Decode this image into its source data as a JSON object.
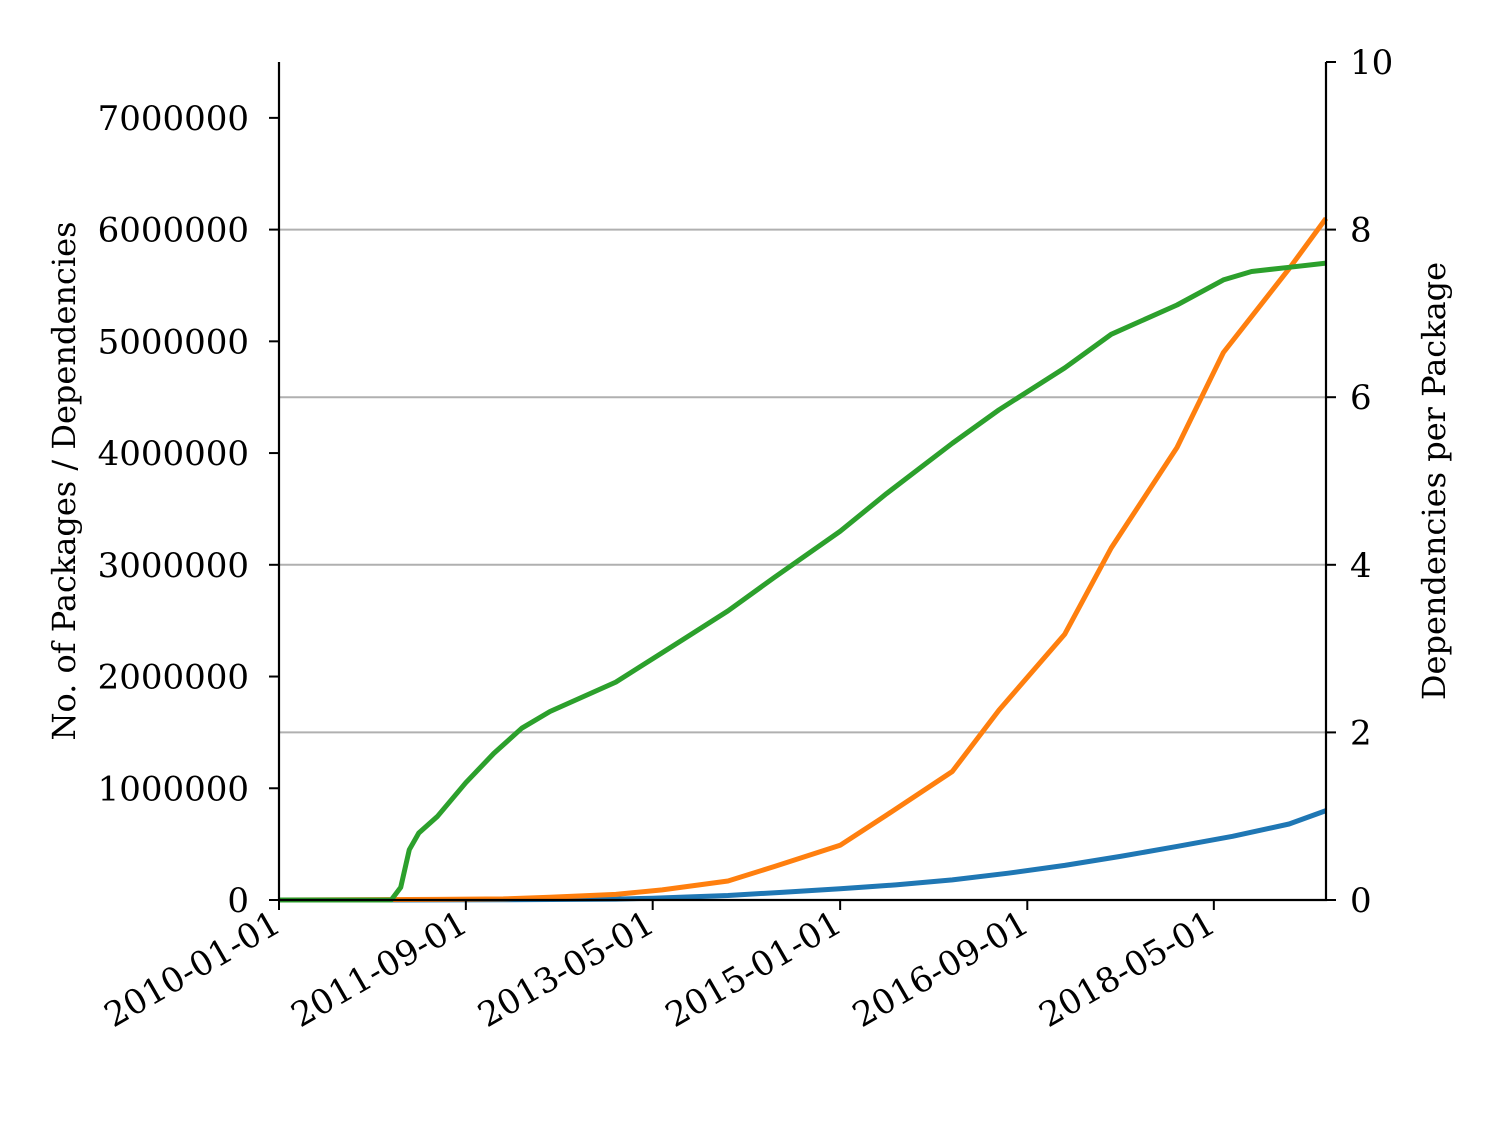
{
  "chart_data": {
    "type": "line",
    "xlabel": "",
    "ylabel": "No. of Packages / Dependencies",
    "y2label": "Dependencies per Package",
    "xlim": [
      "2010-01-01",
      "2019-05-01"
    ],
    "ylim": [
      0,
      7500000
    ],
    "y2lim": [
      0,
      10
    ],
    "grid": "horizontal, right axis",
    "x_ticks": [
      "2010-01-01",
      "2011-09-01",
      "2013-05-01",
      "2015-01-01",
      "2016-09-01",
      "2018-05-01"
    ],
    "y_ticks": [
      "0",
      "1000000",
      "2000000",
      "3000000",
      "4000000",
      "5000000",
      "6000000",
      "7000000"
    ],
    "y2_ticks": [
      "0",
      "2",
      "4",
      "6",
      "8",
      "10"
    ],
    "colors": {
      "blue": "#1f77b4",
      "orange": "#ff7f0e",
      "green": "#2ca02c"
    },
    "series": [
      {
        "color": "#1f77b4",
        "axis": "left",
        "x": [
          "2010-01-01",
          "2011-01-01",
          "2012-01-01",
          "2013-01-01",
          "2013-05-01",
          "2014-01-01",
          "2014-07-01",
          "2015-01-01",
          "2015-07-01",
          "2016-01-01",
          "2016-07-01",
          "2017-01-01",
          "2017-07-01",
          "2018-01-01",
          "2018-07-01",
          "2019-01-01",
          "2019-05-01"
        ],
        "values": [
          0,
          0,
          2000,
          8000,
          15000,
          40000,
          70000,
          100000,
          135000,
          180000,
          240000,
          310000,
          390000,
          480000,
          570000,
          680000,
          800000
        ]
      },
      {
        "color": "#ff7f0e",
        "axis": "left",
        "x": [
          "2010-01-01",
          "2011-06-01",
          "2012-01-01",
          "2012-06-01",
          "2013-01-01",
          "2013-06-01",
          "2014-01-01",
          "2014-06-01",
          "2015-01-01",
          "2015-06-01",
          "2016-01-01",
          "2016-06-01",
          "2017-01-01",
          "2017-06-01",
          "2018-01-01",
          "2018-06-01",
          "2019-01-01",
          "2019-05-01"
        ],
        "values": [
          0,
          5000,
          10000,
          25000,
          50000,
          90000,
          170000,
          300000,
          490000,
          760000,
          1150000,
          1700000,
          2380000,
          3150000,
          4050000,
          4900000,
          5650000,
          6100000
        ]
      },
      {
        "color": "#2ca02c",
        "axis": "right",
        "x": [
          "2010-01-01",
          "2011-01-01",
          "2011-02-01",
          "2011-03-01",
          "2011-04-01",
          "2011-06-01",
          "2011-09-01",
          "2011-12-01",
          "2012-03-01",
          "2012-06-01",
          "2013-01-01",
          "2013-06-01",
          "2014-01-01",
          "2014-06-01",
          "2015-01-01",
          "2015-06-01",
          "2016-01-01",
          "2016-06-01",
          "2017-01-01",
          "2017-06-01",
          "2018-01-01",
          "2018-06-01",
          "2018-09-01",
          "2019-01-01",
          "2019-05-01"
        ],
        "values": [
          0,
          0,
          0.15,
          0.6,
          0.8,
          1.0,
          1.4,
          1.75,
          2.05,
          2.25,
          2.6,
          2.95,
          3.45,
          3.85,
          4.4,
          4.85,
          5.45,
          5.85,
          6.35,
          6.75,
          7.1,
          7.4,
          7.5,
          7.55,
          7.6
        ]
      }
    ]
  }
}
